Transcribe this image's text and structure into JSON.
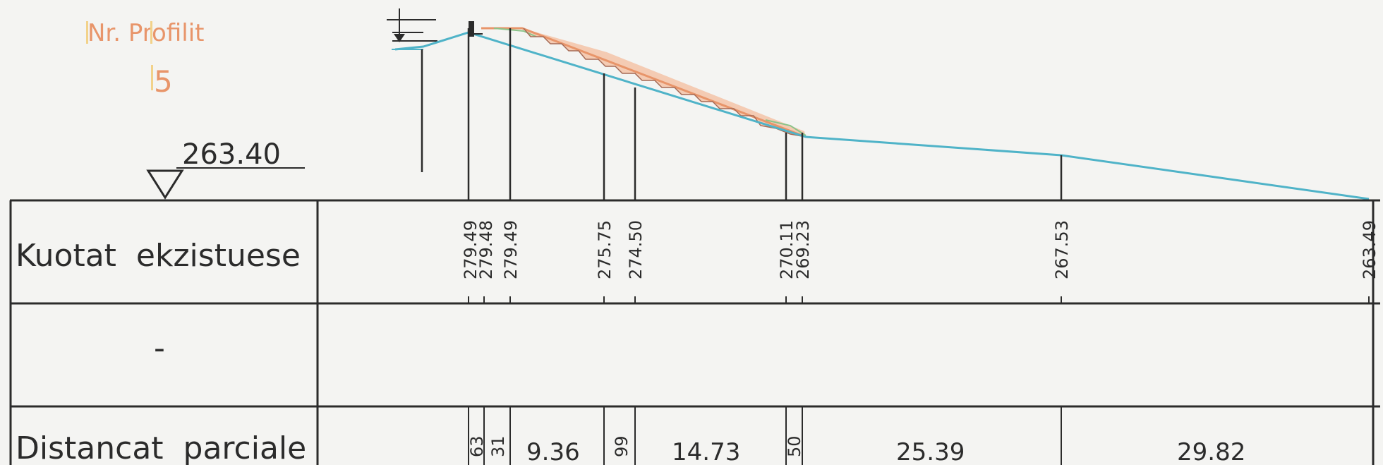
{
  "profile": {
    "title": "Nr. Profilit",
    "number": "5",
    "datum": "263.40"
  },
  "table": {
    "rows": [
      {
        "label": "Kuotat  ekzistuese"
      },
      {
        "label": "-"
      },
      {
        "label": "Distancat  parciale"
      }
    ]
  },
  "elevations": [
    {
      "value": "279.49"
    },
    {
      "value": "279.48"
    },
    {
      "value": "279.49"
    },
    {
      "value": "275.75"
    },
    {
      "value": "274.50"
    },
    {
      "value": "270.11"
    },
    {
      "value": "269.23"
    },
    {
      "value": "267.53"
    },
    {
      "value": "263.49"
    }
  ],
  "distances": [
    {
      "value": "63"
    },
    {
      "value": "31"
    },
    {
      "value": "9.36"
    },
    {
      "value": "99"
    },
    {
      "value": "14.73"
    },
    {
      "value": "50"
    },
    {
      "value": "25.39"
    },
    {
      "value": "29.82"
    }
  ],
  "colors": {
    "terrain": "#4fb3c8",
    "slope_line": "#e8956a",
    "slope_fill": "#f3c3a8",
    "green_accent": "#8bc48a",
    "ink": "#2b2b2b"
  }
}
